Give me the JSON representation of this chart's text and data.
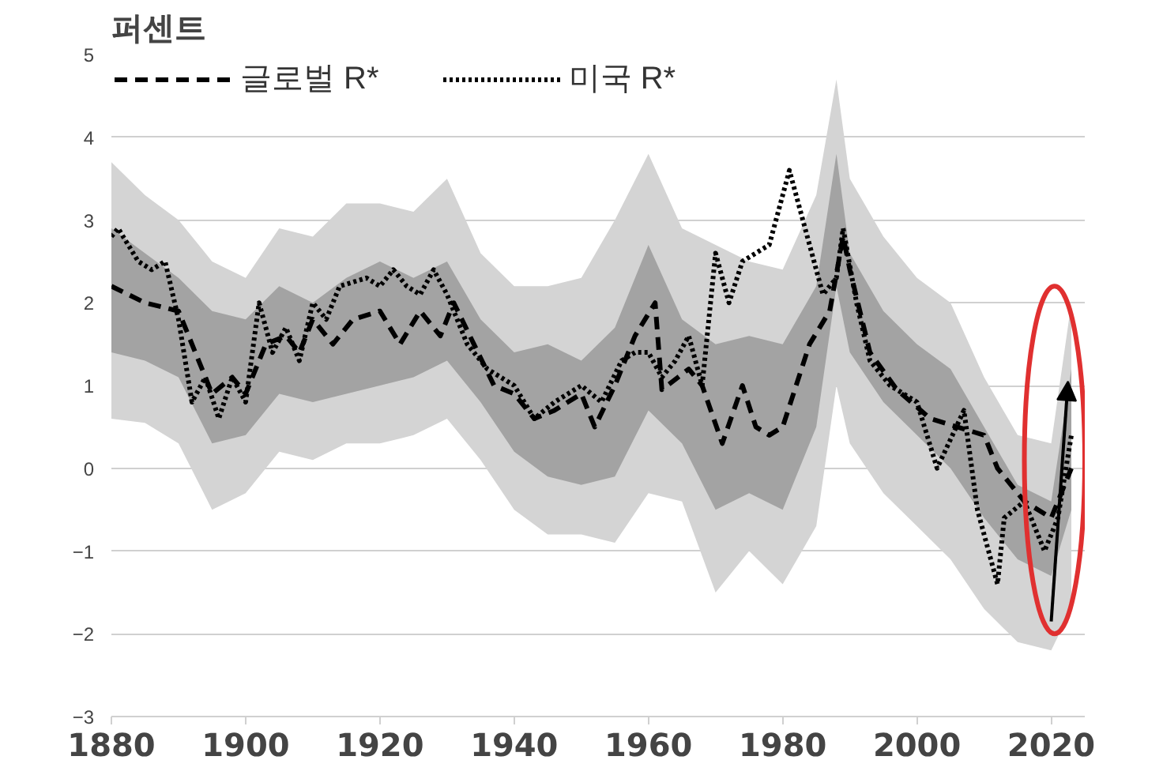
{
  "chart_data": {
    "type": "line",
    "ylabel": "퍼센트",
    "legend": "top",
    "grid": "y",
    "xlim": [
      1880,
      2025
    ],
    "ylim": [
      -3,
      5
    ],
    "xticks": [
      1880,
      1900,
      1920,
      1940,
      1960,
      1980,
      2000,
      2020
    ],
    "yticks": [
      -3,
      -2,
      -1,
      0,
      1,
      2,
      3,
      4,
      5
    ],
    "series": [
      {
        "color": "#d4d4d4",
        "x": [
          1880,
          1885,
          1890,
          1895,
          1900,
          1905,
          1910,
          1915,
          1920,
          1925,
          1930,
          1935,
          1940,
          1945,
          1950,
          1955,
          1960,
          1965,
          1970,
          1975,
          1980,
          1985,
          1988,
          1990,
          1995,
          2000,
          2005,
          2010,
          2015,
          2020,
          2023
        ],
        "values": [
          null,
          null,
          null,
          null,
          null,
          null,
          null,
          null,
          null,
          null,
          null,
          null,
          null,
          null,
          null,
          null,
          null,
          null,
          null,
          null,
          null,
          null,
          null,
          null,
          null,
          null,
          null,
          null,
          null,
          null,
          null
        ],
        "upper": [
          3.7,
          3.3,
          3.0,
          2.5,
          2.3,
          2.9,
          2.8,
          3.2,
          3.2,
          3.1,
          3.5,
          2.6,
          2.2,
          2.2,
          2.3,
          3.0,
          3.8,
          2.9,
          2.7,
          2.5,
          2.4,
          3.3,
          4.7,
          3.5,
          2.8,
          2.3,
          2.0,
          1.1,
          0.4,
          0.3,
          2.0
        ],
        "lower": [
          0.6,
          0.55,
          0.3,
          -0.5,
          -0.3,
          0.2,
          0.1,
          0.3,
          0.3,
          0.4,
          0.6,
          0.1,
          -0.5,
          -0.8,
          -0.8,
          -0.9,
          -0.3,
          -0.4,
          -1.5,
          -1.0,
          -1.4,
          -0.7,
          1.0,
          0.3,
          -0.3,
          -0.7,
          -1.1,
          -1.7,
          -2.1,
          -2.2,
          -1.7
        ]
      },
      {
        "color": "#a3a3a3",
        "x": [
          1880,
          1885,
          1890,
          1895,
          1900,
          1905,
          1910,
          1915,
          1920,
          1925,
          1930,
          1935,
          1940,
          1945,
          1950,
          1955,
          1960,
          1965,
          1970,
          1975,
          1980,
          1985,
          1988,
          1990,
          1995,
          2000,
          2005,
          2010,
          2015,
          2020,
          2023
        ],
        "values": [
          null,
          null,
          null,
          null,
          null,
          null,
          null,
          null,
          null,
          null,
          null,
          null,
          null,
          null,
          null,
          null,
          null,
          null,
          null,
          null,
          null,
          null,
          null,
          null,
          null,
          null,
          null,
          null,
          null,
          null,
          null
        ],
        "upper": [
          2.9,
          2.6,
          2.3,
          1.9,
          1.8,
          2.2,
          2.0,
          2.3,
          2.5,
          2.3,
          2.5,
          1.8,
          1.4,
          1.5,
          1.3,
          1.7,
          2.7,
          1.8,
          1.5,
          1.6,
          1.5,
          2.2,
          3.8,
          2.6,
          1.9,
          1.5,
          1.2,
          0.5,
          -0.2,
          -0.4,
          1.2
        ],
        "lower": [
          1.4,
          1.3,
          1.1,
          0.3,
          0.4,
          0.9,
          0.8,
          0.9,
          1.0,
          1.1,
          1.3,
          0.8,
          0.2,
          -0.1,
          -0.2,
          -0.1,
          0.7,
          0.3,
          -0.5,
          -0.3,
          -0.5,
          0.5,
          2.2,
          1.4,
          0.8,
          0.4,
          0.0,
          -0.6,
          -1.1,
          -1.3,
          -0.5
        ]
      },
      {
        "name": "글로벌 R*",
        "color": "#000000",
        "line_style": "dashed",
        "x": [
          1880,
          1885,
          1890,
          1893,
          1895,
          1898,
          1900,
          1903,
          1906,
          1908,
          1910,
          1913,
          1916,
          1920,
          1923,
          1926,
          1929,
          1931,
          1934,
          1937,
          1940,
          1943,
          1946,
          1950,
          1952,
          1955,
          1958,
          1961,
          1962,
          1966,
          1968,
          1971,
          1974,
          1976,
          1978,
          1980,
          1984,
          1987,
          1989,
          1990,
          1993,
          1997,
          2002,
          2010,
          2012,
          2016,
          2020,
          2023
        ],
        "values": [
          2.2,
          2.0,
          1.9,
          1.3,
          0.9,
          1.1,
          0.9,
          1.5,
          1.6,
          1.4,
          1.8,
          1.5,
          1.8,
          1.9,
          1.5,
          1.9,
          1.6,
          2.0,
          1.5,
          1.0,
          0.9,
          0.6,
          0.7,
          0.9,
          0.5,
          1.0,
          1.6,
          2.0,
          0.95,
          1.2,
          1.0,
          0.3,
          1.0,
          0.5,
          0.4,
          0.5,
          1.5,
          1.9,
          2.8,
          2.4,
          1.4,
          0.95,
          0.6,
          0.4,
          0.0,
          -0.4,
          -0.6,
          0.0
        ]
      },
      {
        "name": "미국 R*",
        "color": "#000000",
        "line_style": "dotted",
        "x": [
          1880,
          1881,
          1884,
          1886,
          1888,
          1890,
          1892,
          1894,
          1896,
          1898,
          1900,
          1902,
          1904,
          1906,
          1908,
          1910,
          1912,
          1914,
          1918,
          1920,
          1922,
          1924,
          1926,
          1928,
          1930,
          1933,
          1936,
          1940,
          1943,
          1946,
          1950,
          1953,
          1956,
          1958,
          1960,
          1962,
          1964,
          1966,
          1968,
          1970,
          1972,
          1974,
          1978,
          1981,
          1984,
          1986,
          1988,
          1989,
          1991,
          1993,
          1996,
          2000,
          2003,
          2007,
          2009,
          2012,
          2013,
          2016,
          2019,
          2021,
          2023
        ],
        "values": [
          2.8,
          2.9,
          2.5,
          2.4,
          2.5,
          1.8,
          0.8,
          1.1,
          0.6,
          1.1,
          0.8,
          2.0,
          1.4,
          1.7,
          1.3,
          2.0,
          1.8,
          2.2,
          2.3,
          2.2,
          2.4,
          2.2,
          2.1,
          2.4,
          2.1,
          1.5,
          1.2,
          1.0,
          0.6,
          0.8,
          1.0,
          0.8,
          1.3,
          1.4,
          1.4,
          1.1,
          1.3,
          1.6,
          1.0,
          2.6,
          2.0,
          2.5,
          2.7,
          3.6,
          2.7,
          2.1,
          2.3,
          2.9,
          2.0,
          1.3,
          1.0,
          0.8,
          0.0,
          0.7,
          -0.5,
          -1.4,
          -0.6,
          -0.4,
          -1.0,
          -0.6,
          0.4
        ]
      }
    ]
  }
}
